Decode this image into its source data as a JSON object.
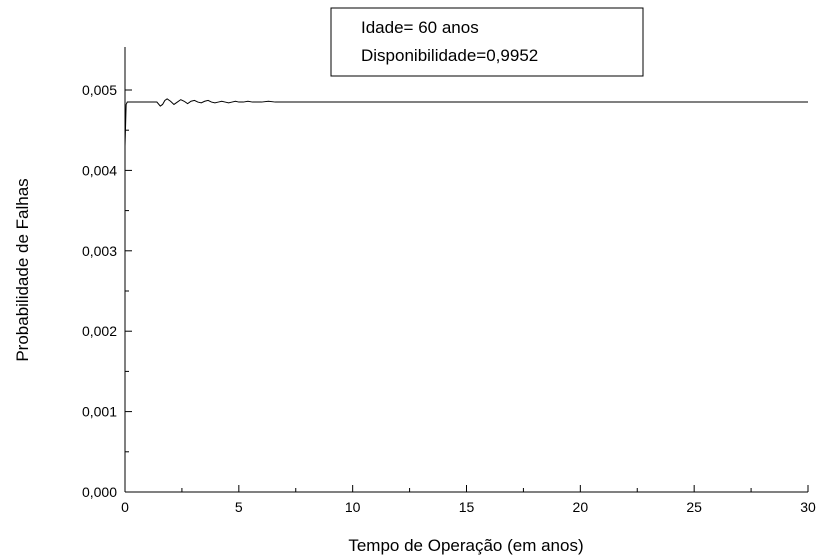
{
  "chart_data": {
    "type": "line",
    "xlabel": "Tempo de Operação (em anos)",
    "ylabel": "Probabilidade de Falhas",
    "xlim": [
      0,
      30
    ],
    "ylim": [
      0,
      0.005
    ],
    "x_ticks": [
      "0",
      "5",
      "10",
      "15",
      "20",
      "25",
      "30"
    ],
    "y_ticks": [
      "0,000",
      "0,001",
      "0,002",
      "0,003",
      "0,004",
      "0,005"
    ],
    "annotation": {
      "lines": [
        "Idade= 60 anos",
        "Disponibilidade=0,9952"
      ]
    },
    "grid": false,
    "series": [
      {
        "x": [
          0,
          0.05,
          0.1,
          0.2,
          0.4,
          0.6,
          0.8,
          1.0,
          1.2,
          1.4,
          1.55,
          1.65,
          1.75,
          1.85,
          2.0,
          2.15,
          2.3,
          2.45,
          2.6,
          2.75,
          2.9,
          3.05,
          3.2,
          3.35,
          3.5,
          3.65,
          3.8,
          3.95,
          4.1,
          4.25,
          4.4,
          4.55,
          4.7,
          4.85,
          5.0,
          5.2,
          5.4,
          5.6,
          5.8,
          6.0,
          6.3,
          6.6,
          7.0,
          7.5,
          8.0,
          9.0,
          10.0,
          12.0,
          15.0,
          20.0,
          25.0,
          30.0
        ],
        "y": [
          0.0043,
          0.00482,
          0.00485,
          0.00485,
          0.00485,
          0.00485,
          0.00485,
          0.00485,
          0.00485,
          0.00485,
          0.0048,
          0.00482,
          0.00487,
          0.00489,
          0.00486,
          0.00482,
          0.00485,
          0.00488,
          0.00486,
          0.00483,
          0.00486,
          0.00487,
          0.00485,
          0.00484,
          0.00486,
          0.00487,
          0.00485,
          0.00484,
          0.00485,
          0.00486,
          0.00485,
          0.00484,
          0.00485,
          0.00486,
          0.00485,
          0.00485,
          0.00486,
          0.00485,
          0.00485,
          0.00485,
          0.00486,
          0.00485,
          0.00485,
          0.00485,
          0.00485,
          0.00485,
          0.00485,
          0.00485,
          0.00485,
          0.00485,
          0.00485,
          0.00485
        ]
      }
    ]
  }
}
